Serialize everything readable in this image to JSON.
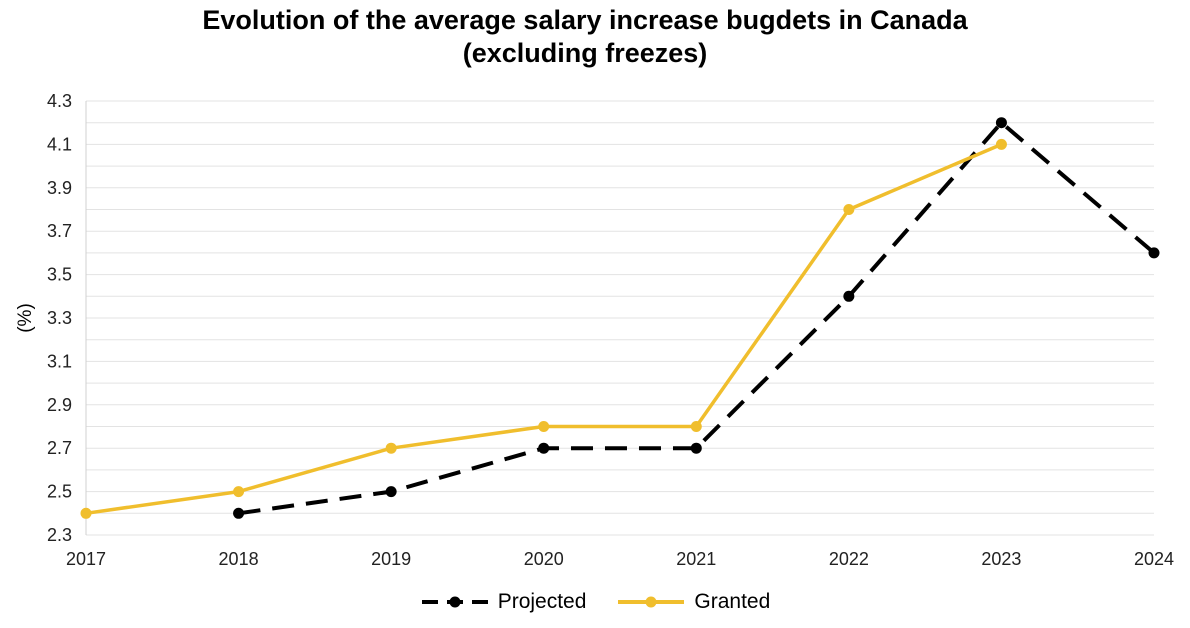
{
  "chart_data": {
    "type": "line",
    "title": "Evolution of the average salary increase bugdets in Canada",
    "subtitle": "(excluding freezes)",
    "xlabel": "",
    "ylabel": "(%)",
    "x": [
      "2017",
      "2018",
      "2019",
      "2020",
      "2021",
      "2022",
      "2023",
      "2024"
    ],
    "ylim": [
      2.3,
      4.3
    ],
    "yticks": [
      "2.3",
      "2.5",
      "2.7",
      "2.9",
      "3.1",
      "3.3",
      "3.5",
      "3.7",
      "3.9",
      "4.1",
      "4.3"
    ],
    "grid": true,
    "legend_position": "bottom",
    "series": [
      {
        "name": "Projected",
        "color": "#000000",
        "dash": true,
        "values": [
          null,
          2.4,
          2.5,
          2.7,
          2.7,
          3.4,
          4.2,
          3.6
        ]
      },
      {
        "name": "Granted",
        "color": "#F0BE2D",
        "dash": false,
        "values": [
          2.4,
          2.5,
          2.7,
          2.8,
          2.8,
          3.8,
          4.1,
          null
        ]
      }
    ]
  }
}
